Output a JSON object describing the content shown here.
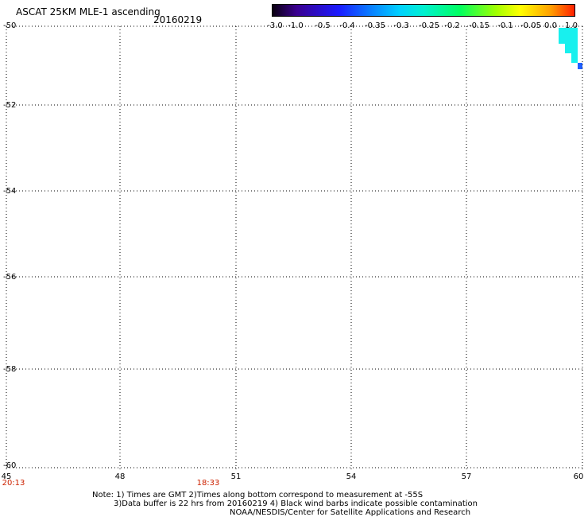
{
  "header": {
    "title": "ASCAT 25KM MLE-1 ascending",
    "date": "20160219"
  },
  "colorbar": {
    "ticks": [
      "-3.0",
      "-1.0",
      "-0.5",
      "-0.4",
      "-0.35",
      "-0.3",
      "-0.25",
      "-0.2",
      "-0.15",
      "-0.1",
      "-0.05",
      "0.0",
      "1.0"
    ],
    "colors": [
      "#0a0010",
      "#3a0090",
      "#1b1bff",
      "#0a7aff",
      "#00d0ff",
      "#00f0d0",
      "#00ff60",
      "#a0ff00",
      "#ffff00",
      "#ffa000",
      "#ff2000"
    ]
  },
  "axes": {
    "y_ticks": [
      "-50",
      "-52",
      "-54",
      "-56",
      "-58",
      "-60"
    ],
    "x_ticks": [
      "45",
      "48",
      "51",
      "54",
      "57",
      "60"
    ],
    "x_range": [
      45,
      60
    ],
    "y_range": [
      -50,
      -60
    ],
    "grid": "dotted"
  },
  "time_labels": [
    "20:13",
    "18:33"
  ],
  "notes": {
    "line1": "Note: 1) Times are GMT 2)Times along bottom correspond to measurement at -55S",
    "line2": "3)Data buffer is 22 hrs from 20160219 4) Black wind barbs indicate possible contamination",
    "line3": "NOAA/NESDIS/Center for Satellite Applications and Research"
  }
}
